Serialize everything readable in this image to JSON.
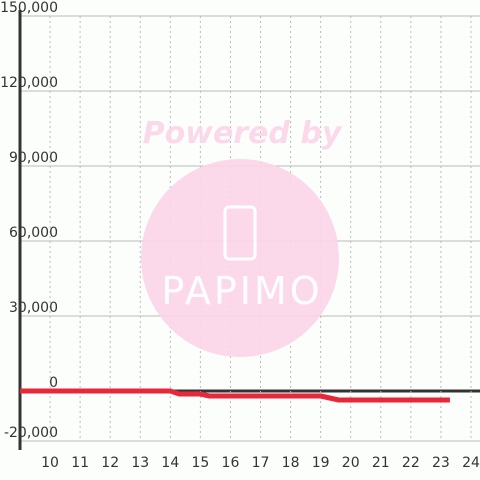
{
  "chart_data": {
    "type": "line",
    "x": [
      9,
      14,
      14.3,
      15,
      15.3,
      19,
      19.6,
      23.3
    ],
    "series": [
      {
        "color": "#e8283a",
        "values": [
          0,
          0,
          -1200,
          -1200,
          -2000,
          -2000,
          -3600,
          -3600
        ]
      }
    ],
    "xlim": [
      9,
      24.3
    ],
    "xticks": [
      10,
      11,
      12,
      13,
      14,
      15,
      16,
      17,
      18,
      19,
      20,
      21,
      22,
      23,
      24
    ],
    "ylim": [
      -20000,
      150000
    ],
    "yticks": [
      {
        "value": -20000,
        "label": "-20,000"
      },
      0,
      {
        "value": 30000,
        "label": "30,000"
      },
      {
        "value": 60000,
        "label": "60,000"
      },
      {
        "value": 90000,
        "label": "90,000"
      },
      {
        "value": 120000,
        "label": "120,000"
      },
      {
        "value": 150000,
        "label": "150,000"
      }
    ],
    "grid": true
  },
  "watermark": {
    "line1": "Powered by",
    "line2": "PAPIMO"
  }
}
